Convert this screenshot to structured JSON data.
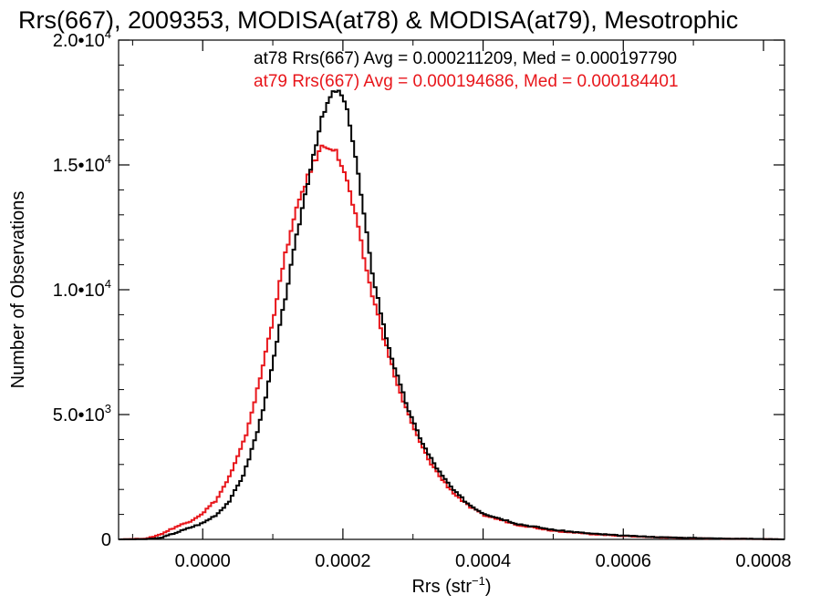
{
  "chart_data": {
    "type": "histogram-step",
    "title": "Rrs(667), 2009353, MODISA(at78) & MODISA(at79), Mesotrophic",
    "xlabel": "Rrs (str",
    "xlabel_sup": "−1",
    "xlabel_close": ")",
    "ylabel": "Number of Observations",
    "xlim": [
      -0.00012,
      0.00083
    ],
    "ylim": [
      0,
      20000
    ],
    "x_ticks": [
      {
        "value": 0.0,
        "label": "0.0000"
      },
      {
        "value": 0.0002,
        "label": "0.0002"
      },
      {
        "value": 0.0004,
        "label": "0.0004"
      },
      {
        "value": 0.0006,
        "label": "0.0006"
      },
      {
        "value": 0.0008,
        "label": "0.0008"
      }
    ],
    "y_ticks": [
      {
        "value": 0,
        "mant": "0",
        "exp": ""
      },
      {
        "value": 5000,
        "mant": "5.0•10",
        "exp": "3"
      },
      {
        "value": 10000,
        "mant": "1.0•10",
        "exp": "4"
      },
      {
        "value": 15000,
        "mant": "1.5•10",
        "exp": "4"
      },
      {
        "value": 20000,
        "mant": "2.0•10",
        "exp": "4"
      }
    ],
    "legend_placement": "top-right",
    "series": [
      {
        "name": "at78",
        "color": "#000000",
        "legend_text": "at78 Rrs(667) Avg = 0.000211209, Med = 0.000197790",
        "x": [
          -0.00012,
          -8e-05,
          -6e-05,
          -4e-05,
          -2e-05,
          0.0,
          2e-05,
          4e-05,
          6e-05,
          8e-05,
          0.0001,
          0.00012,
          0.00014,
          0.00016,
          0.00017,
          0.00018,
          0.00019,
          0.0002,
          0.00021,
          0.00022,
          0.00023,
          0.00024,
          0.00026,
          0.00028,
          0.0003,
          0.00032,
          0.00034,
          0.00036,
          0.00038,
          0.0004,
          0.00045,
          0.0005,
          0.00055,
          0.0006,
          0.00065,
          0.0007,
          0.00075,
          0.0008,
          0.00083
        ],
        "y": [
          0,
          10,
          60,
          250,
          450,
          650,
          1000,
          1600,
          2700,
          4500,
          7000,
          10000,
          13000,
          15700,
          16800,
          17600,
          18000,
          17700,
          16700,
          15000,
          13000,
          11000,
          8300,
          6300,
          4700,
          3500,
          2600,
          1900,
          1400,
          1050,
          620,
          380,
          240,
          150,
          90,
          55,
          30,
          15,
          0
        ]
      },
      {
        "name": "at79",
        "color": "#e8161b",
        "legend_text": "at79 Rrs(667) Avg = 0.000194686, Med = 0.000184401",
        "x": [
          -0.00012,
          -8e-05,
          -6e-05,
          -4e-05,
          -2e-05,
          0.0,
          2e-05,
          4e-05,
          6e-05,
          8e-05,
          0.0001,
          0.00012,
          0.00014,
          0.00016,
          0.00017,
          0.00018,
          0.00019,
          0.0002,
          0.00021,
          0.00022,
          0.00023,
          0.00024,
          0.00026,
          0.00028,
          0.0003,
          0.00032,
          0.00034,
          0.00036,
          0.00038,
          0.0004,
          0.00045,
          0.0005,
          0.00055,
          0.0006,
          0.00065,
          0.0007,
          0.00075,
          0.0008,
          0.00083
        ],
        "y": [
          0,
          30,
          200,
          480,
          700,
          1050,
          1600,
          2600,
          4000,
          6200,
          8800,
          11700,
          13800,
          15200,
          15700,
          15800,
          15500,
          14900,
          13900,
          12700,
          11300,
          10000,
          7900,
          6000,
          4500,
          3300,
          2450,
          1800,
          1320,
          980,
          580,
          350,
          220,
          135,
          80,
          48,
          26,
          12,
          0
        ]
      }
    ]
  }
}
